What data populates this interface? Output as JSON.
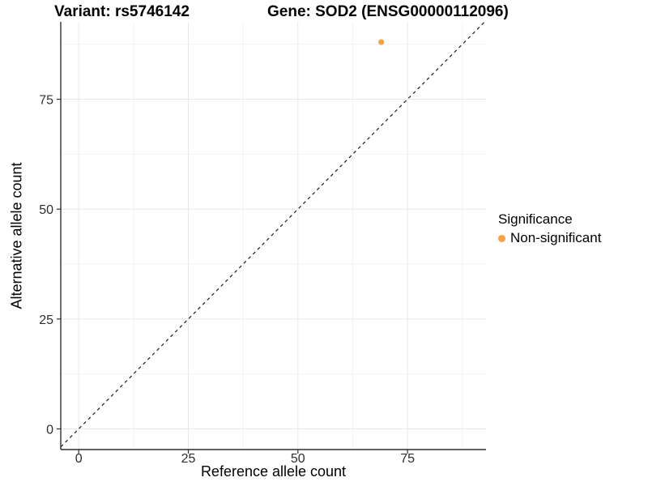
{
  "titles": {
    "variant": "Variant: rs5746142",
    "gene": "Gene: SOD2 (ENSG00000112096)"
  },
  "chart_data": {
    "type": "scatter",
    "title_left": "Variant: rs5746142",
    "title_right": "Gene: SOD2 (ENSG00000112096)",
    "xlabel": "Reference allele count",
    "ylabel": "Alternative allele count",
    "x_ticks": [
      0,
      25,
      50,
      75
    ],
    "y_ticks": [
      0,
      25,
      50,
      75
    ],
    "x_minor_ticks": [
      12.5,
      37.5,
      62.5,
      87.5
    ],
    "y_minor_ticks": [
      12.5,
      37.5,
      62.5,
      87.5
    ],
    "xlim": [
      -4.1,
      92.9
    ],
    "ylim": [
      -4.7,
      92.6
    ],
    "grid": true,
    "points": [
      {
        "x": 69,
        "y": 88,
        "series": "Non-significant"
      }
    ],
    "reference_line": {
      "type": "identity",
      "slope": 1,
      "intercept": 0,
      "style": "dashed"
    },
    "legend": {
      "title": "Significance",
      "position": "right",
      "items": [
        {
          "label": "Non-significant",
          "color": "#F9A242"
        }
      ]
    },
    "colors": {
      "point": "#F9A242",
      "axis": "#2F2F2F",
      "tick_label": "#2E2E2E",
      "grid_major": "#E8E8E8",
      "grid_minor": "#F3F3F3",
      "dashed_line": "#1A1A1A"
    }
  }
}
